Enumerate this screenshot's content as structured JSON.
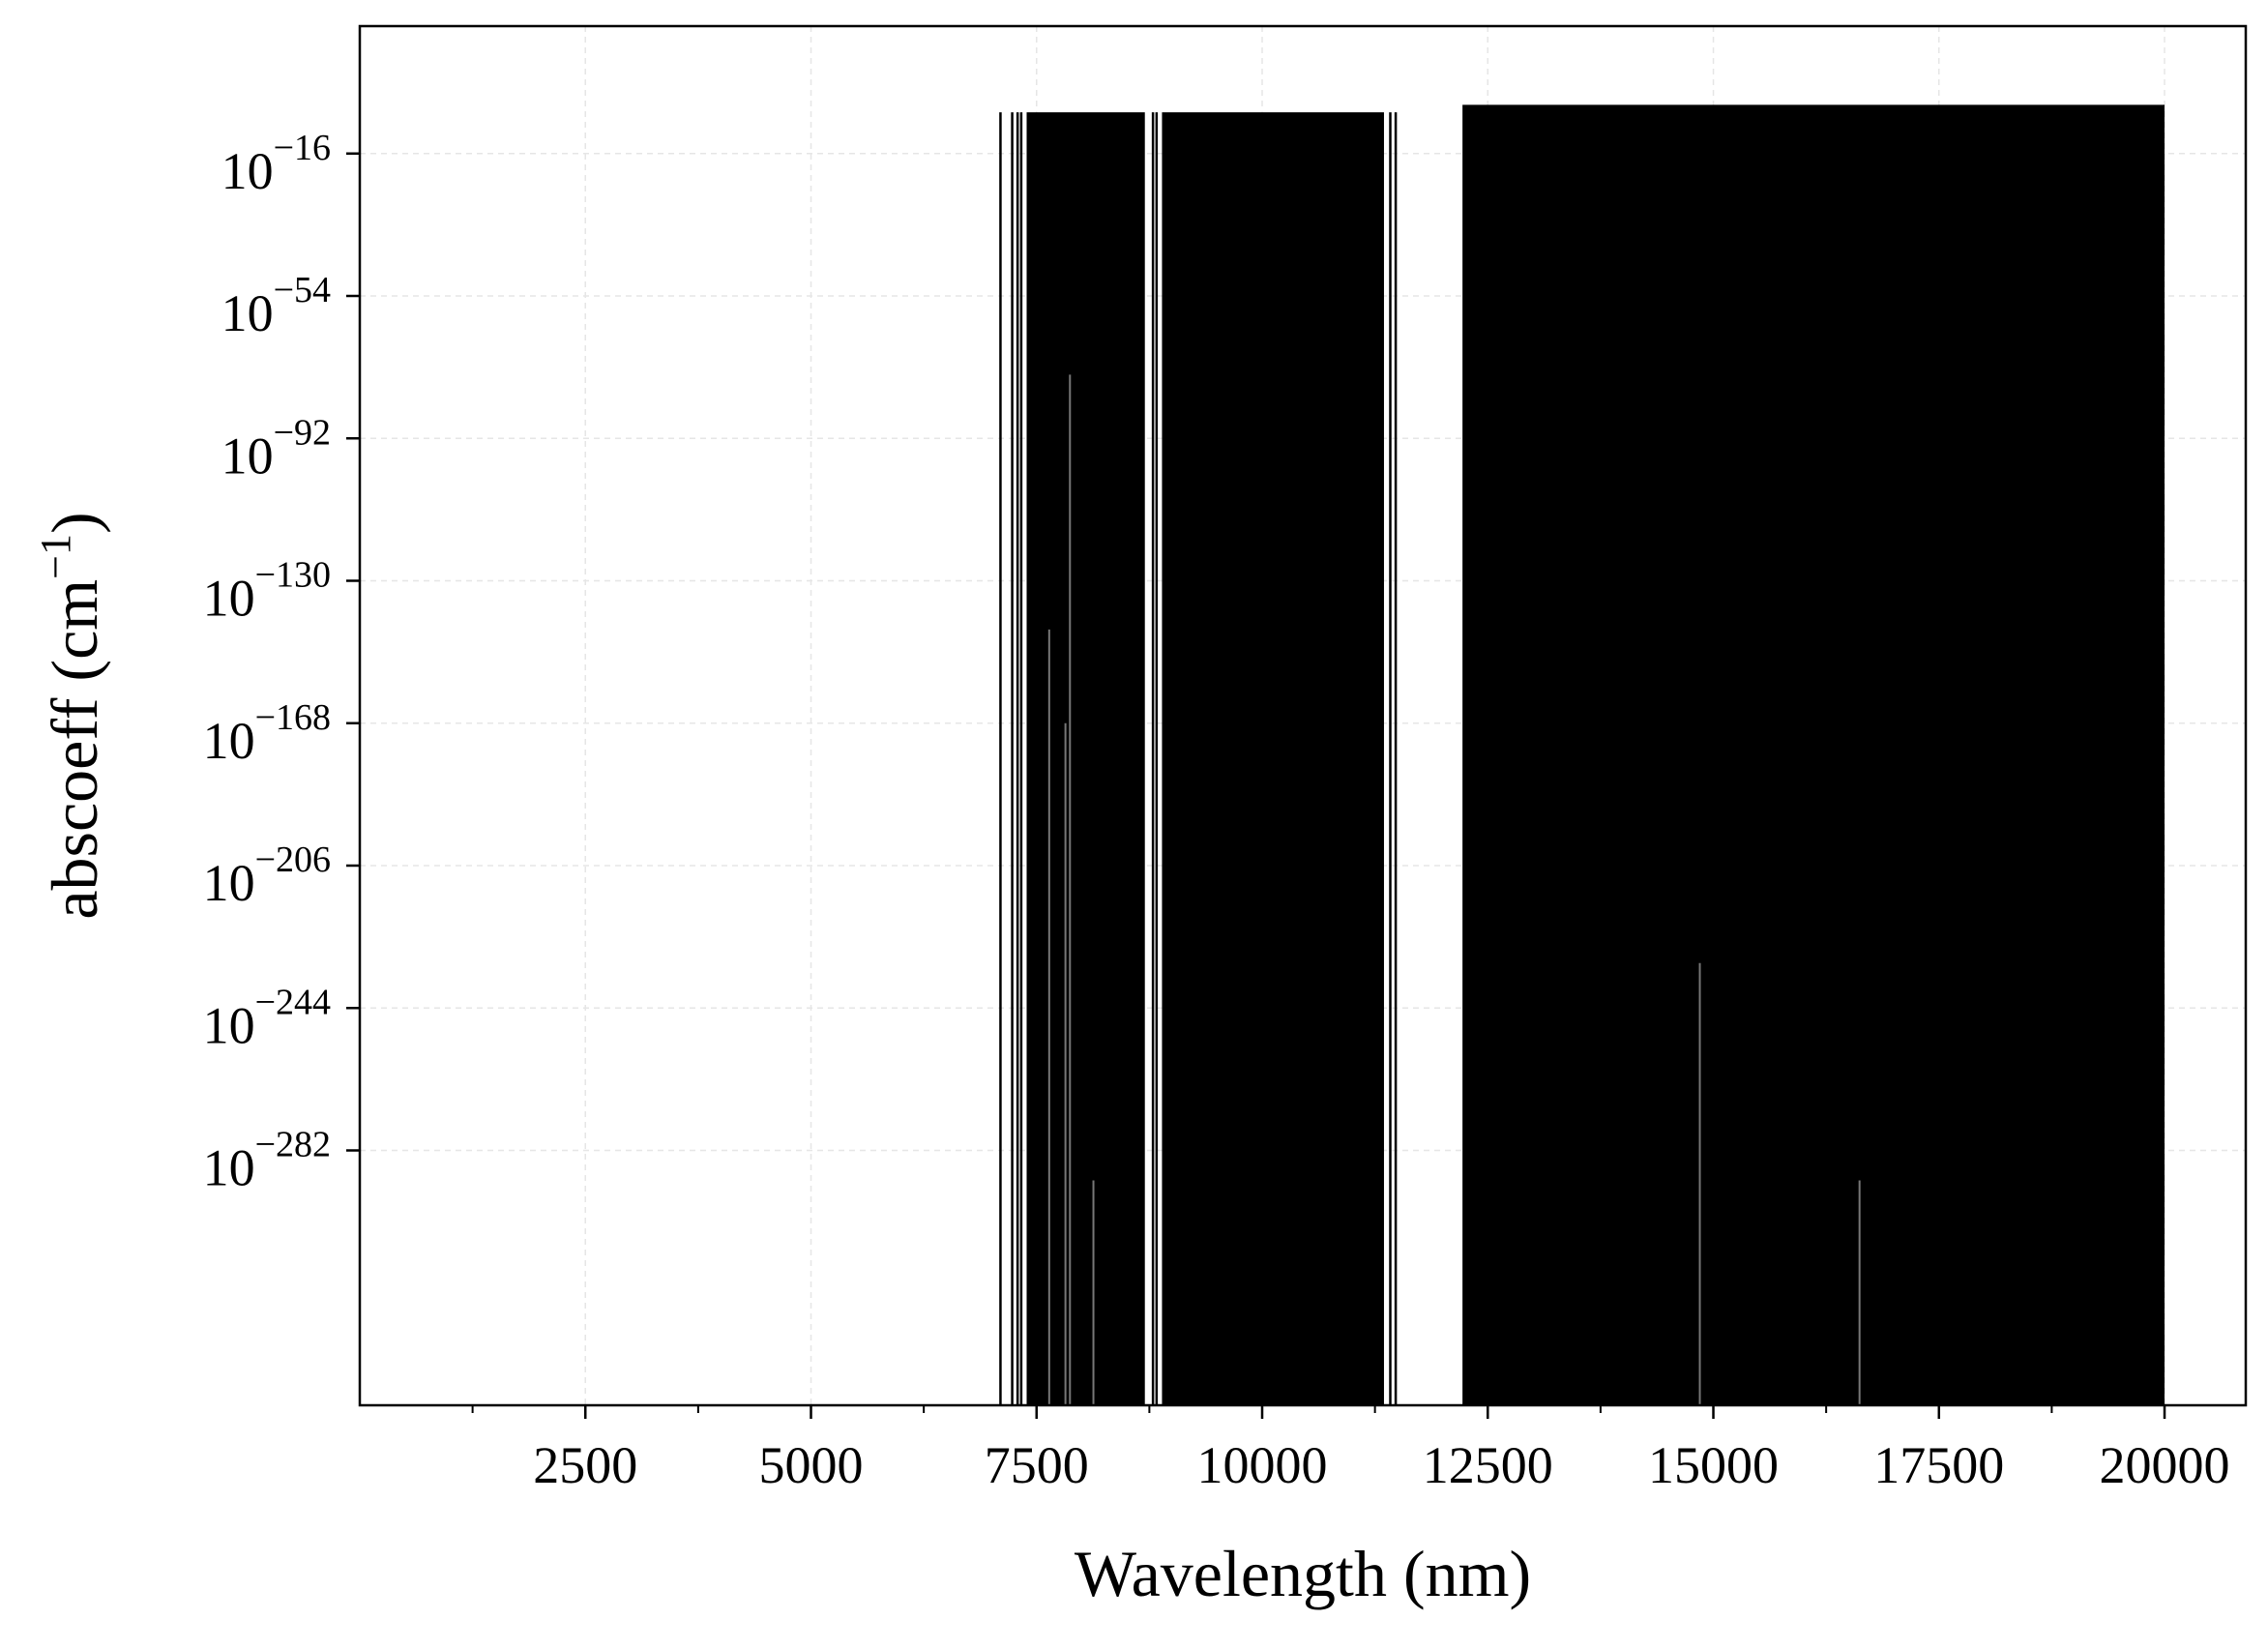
{
  "chart_data": {
    "type": "line",
    "xlabel": "Wavelength (nm)",
    "ylabel": {
      "base": "abscoeff (cm",
      "exponent": "−1",
      "close": ")"
    },
    "xlim": [
      0,
      20900
    ],
    "y_log_exponent_lim": [
      -350,
      18
    ],
    "y_scale": "log",
    "grid": true,
    "x_ticks": [
      {
        "value": 2500,
        "label": "2500"
      },
      {
        "value": 5000,
        "label": "5000"
      },
      {
        "value": 7500,
        "label": "7500"
      },
      {
        "value": 10000,
        "label": "10000"
      },
      {
        "value": 12500,
        "label": "12500"
      },
      {
        "value": 15000,
        "label": "15000"
      },
      {
        "value": 17500,
        "label": "17500"
      },
      {
        "value": 20000,
        "label": "20000"
      }
    ],
    "x_minor_ticks": [
      1250,
      3750,
      6250,
      8750,
      11250,
      13750,
      16250,
      18750
    ],
    "y_ticks": [
      {
        "exp": -16,
        "base": "10",
        "label": "−16"
      },
      {
        "exp": -54,
        "base": "10",
        "label": "−54"
      },
      {
        "exp": -92,
        "base": "10",
        "label": "−92"
      },
      {
        "exp": -130,
        "base": "10",
        "label": "−130"
      },
      {
        "exp": -168,
        "base": "10",
        "label": "−168"
      },
      {
        "exp": -206,
        "base": "10",
        "label": "−206"
      },
      {
        "exp": -244,
        "base": "10",
        "label": "−244"
      },
      {
        "exp": -282,
        "base": "10",
        "label": "−282"
      }
    ],
    "series": [
      {
        "color": "#000000",
        "filled_bands": [
          {
            "x_start": 7390,
            "x_end": 8700,
            "top_exp": -5
          },
          {
            "x_start": 8890,
            "x_end": 11350,
            "top_exp": -5
          },
          {
            "x_start": 12220,
            "x_end": 20000,
            "top_exp": -3
          }
        ],
        "isolated_lines": [
          {
            "x": 7100,
            "top_exp": -5
          },
          {
            "x": 7230,
            "top_exp": -5
          },
          {
            "x": 7290,
            "top_exp": -5
          },
          {
            "x": 7330,
            "top_exp": -5
          },
          {
            "x": 8790,
            "top_exp": -5
          },
          {
            "x": 8830,
            "top_exp": -5
          },
          {
            "x": 11420,
            "top_exp": -5
          },
          {
            "x": 11480,
            "top_exp": -5
          }
        ],
        "low_excursions": [
          {
            "x": 7640,
            "bottom_exp": -143
          },
          {
            "x": 7870,
            "bottom_exp": -75
          },
          {
            "x": 7820,
            "bottom_exp": -168
          },
          {
            "x": 8130,
            "bottom_exp": -290
          },
          {
            "x": 14850,
            "bottom_exp": -232
          },
          {
            "x": 16620,
            "bottom_exp": -290
          }
        ]
      }
    ]
  }
}
